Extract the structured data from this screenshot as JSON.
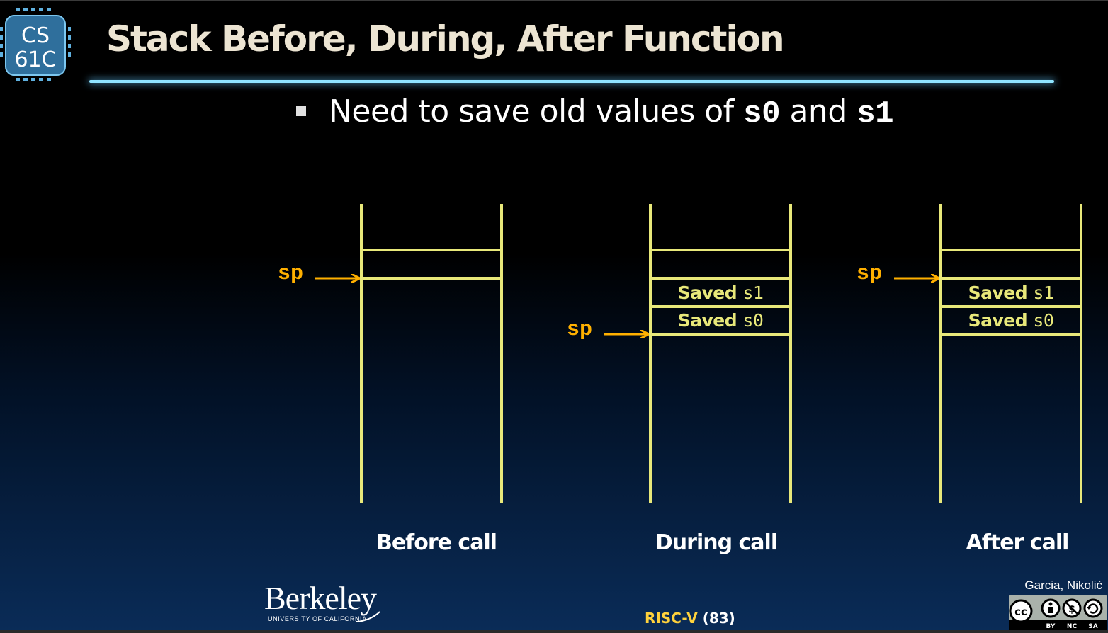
{
  "header": {
    "logo_text_line1": "CS",
    "logo_text_line2": "61C",
    "title": "Stack Before, During, After Function"
  },
  "bullet": {
    "text_before": "Need to save old values of ",
    "code1": "s0",
    "text_middle": " and ",
    "code2": "s1"
  },
  "stacks": [
    {
      "label": "Before call",
      "slots": [],
      "sp_label": "sp",
      "sp_position": "below top empty slot"
    },
    {
      "label": "During call",
      "slots": [
        {
          "text": "Saved ",
          "code": "s1"
        },
        {
          "text": "Saved ",
          "code": "s0"
        }
      ],
      "sp_label": "sp",
      "sp_position": "below Saved s0"
    },
    {
      "label": "After call",
      "slots": [
        {
          "text": "Saved ",
          "code": "s1"
        },
        {
          "text": "Saved ",
          "code": "s0"
        }
      ],
      "sp_label": "sp",
      "sp_position": "below top empty slot"
    }
  ],
  "footer": {
    "university": "Berkeley",
    "university_sub": "UNIVERSITY OF CALIFORNIA",
    "topic": "RISC-V",
    "slide_number": "(83)",
    "authors": "Garcia, Nikolić",
    "license_labels": [
      "BY",
      "NC",
      "SA"
    ]
  },
  "colors": {
    "stack_line": "#e8e87a",
    "sp_pointer": "#ffb000",
    "title": "#ece4d2",
    "title_underline": "#8fe4ff",
    "footer_highlight": "#ffd23c"
  }
}
